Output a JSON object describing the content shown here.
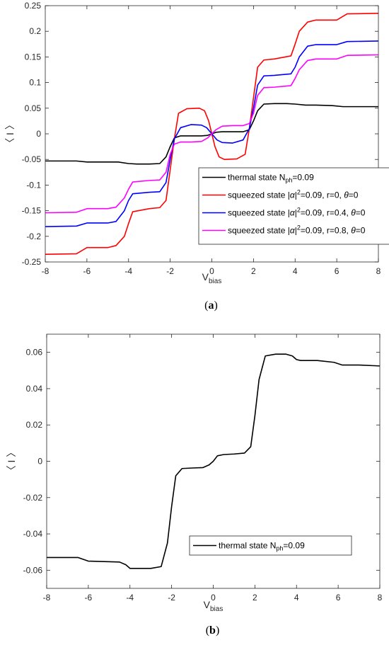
{
  "chart_data": [
    {
      "type": "line",
      "panel_label": "(a)",
      "caption": {
        "open": "(",
        "letter": "a",
        "close": ")"
      },
      "xlabel": {
        "main": "V",
        "sub": "bias"
      },
      "ylabel": "〈 I 〉",
      "xlim": [
        -8,
        8
      ],
      "ylim": [
        -0.25,
        0.25
      ],
      "xticks": [
        -8,
        -6,
        -4,
        -2,
        0,
        2,
        4,
        6,
        8
      ],
      "yticks": [
        -0.25,
        -0.2,
        -0.15,
        -0.1,
        -0.05,
        0,
        0.05,
        0.1,
        0.15,
        0.2,
        0.25
      ],
      "ytick_labels": [
        "-0.25",
        "-0.2",
        "-0.15",
        "-0.1",
        "-0.05",
        "0",
        "0.05",
        "0.1",
        "0.15",
        "0.2",
        "0.25"
      ],
      "grid": false,
      "legend_position": "lower-right",
      "series": [
        {
          "name": "thermal state N_ph=0.09",
          "legend": [
            {
              "t": "thermal state N"
            },
            {
              "t": "ph",
              "sub": true
            },
            {
              "t": "=0.09"
            }
          ],
          "color": "#000000",
          "x": [
            -8,
            -6.5,
            -6,
            -4.5,
            -4,
            -3.6,
            -3.0,
            -2.5,
            -2.2,
            -2.0,
            -1.8,
            -1.5,
            -1.0,
            -0.5,
            -0.2,
            0,
            0.2,
            0.5,
            1.0,
            1.5,
            1.8,
            2.0,
            2.2,
            2.5,
            3.0,
            3.6,
            4,
            4.5,
            5,
            5.8,
            6.3,
            7,
            8
          ],
          "y": [
            -0.053,
            -0.053,
            -0.055,
            -0.055,
            -0.058,
            -0.059,
            -0.059,
            -0.058,
            -0.045,
            -0.025,
            -0.008,
            -0.004,
            -0.004,
            -0.004,
            -0.003,
            0.0,
            0.003,
            0.004,
            0.004,
            0.004,
            0.008,
            0.025,
            0.045,
            0.058,
            0.059,
            0.059,
            0.058,
            0.056,
            0.056,
            0.055,
            0.053,
            0.053,
            0.053
          ]
        },
        {
          "name": "squeezed state |α|²=0.09, r=0, θ=0",
          "legend": [
            {
              "t": "squeezed state |"
            },
            {
              "t": "α",
              "i": true
            },
            {
              "t": "|"
            },
            {
              "t": "2",
              "sup": true
            },
            {
              "t": "=0.09, r=0, "
            },
            {
              "t": "θ",
              "i": true
            },
            {
              "t": "=0"
            }
          ],
          "color": "#ff0000",
          "x": [
            -8,
            -6.5,
            -6,
            -5,
            -4.6,
            -4.2,
            -4,
            -3.8,
            -3.0,
            -2.5,
            -2.2,
            -2.0,
            -1.8,
            -1.6,
            -1.2,
            -0.6,
            -0.35,
            -0.15,
            0,
            0.15,
            0.35,
            0.6,
            1.2,
            1.6,
            1.8,
            2.0,
            2.2,
            2.5,
            3.0,
            3.8,
            4,
            4.2,
            4.6,
            5,
            6,
            6.5,
            8
          ],
          "y": [
            -0.235,
            -0.234,
            -0.222,
            -0.222,
            -0.218,
            -0.2,
            -0.175,
            -0.152,
            -0.146,
            -0.144,
            -0.13,
            -0.07,
            -0.01,
            0.04,
            0.049,
            0.05,
            0.045,
            0.025,
            0.0,
            -0.025,
            -0.045,
            -0.05,
            -0.049,
            -0.04,
            0.01,
            0.07,
            0.13,
            0.144,
            0.146,
            0.152,
            0.175,
            0.2,
            0.218,
            0.222,
            0.222,
            0.234,
            0.235
          ]
        },
        {
          "name": "squeezed state |α|²=0.09, r=0.4, θ=0",
          "legend": [
            {
              "t": "squeezed state |"
            },
            {
              "t": "α",
              "i": true
            },
            {
              "t": "|"
            },
            {
              "t": "2",
              "sup": true
            },
            {
              "t": "=0.09, r=0.4, "
            },
            {
              "t": "θ",
              "i": true
            },
            {
              "t": "=0"
            }
          ],
          "color": "#0000ff",
          "x": [
            -8,
            -6.5,
            -6,
            -5,
            -4.6,
            -4.2,
            -4,
            -3.8,
            -3.0,
            -2.5,
            -2.2,
            -2.0,
            -1.8,
            -1.5,
            -1.0,
            -0.5,
            -0.25,
            0,
            0.25,
            0.5,
            1.0,
            1.5,
            1.8,
            2.0,
            2.2,
            2.5,
            3.0,
            3.8,
            4,
            4.2,
            4.6,
            5,
            6,
            6.5,
            8
          ],
          "y": [
            -0.181,
            -0.18,
            -0.174,
            -0.174,
            -0.171,
            -0.15,
            -0.13,
            -0.117,
            -0.114,
            -0.113,
            -0.095,
            -0.05,
            -0.01,
            0.012,
            0.018,
            0.017,
            0.012,
            0.0,
            -0.012,
            -0.017,
            -0.018,
            -0.012,
            0.01,
            0.05,
            0.095,
            0.113,
            0.114,
            0.117,
            0.13,
            0.15,
            0.171,
            0.174,
            0.174,
            0.18,
            0.181
          ]
        },
        {
          "name": "squeezed state |α|²=0.09, r=0.8, θ=0",
          "legend": [
            {
              "t": "squeezed state |"
            },
            {
              "t": "α",
              "i": true
            },
            {
              "t": "|"
            },
            {
              "t": "2",
              "sup": true
            },
            {
              "t": "=0.09, r=0.8, "
            },
            {
              "t": "θ",
              "i": true
            },
            {
              "t": "=0"
            }
          ],
          "color": "#ff00ff",
          "x": [
            -8,
            -6.5,
            -6,
            -5,
            -4.6,
            -4.2,
            -4,
            -3.8,
            -3.0,
            -2.5,
            -2.2,
            -2.0,
            -1.8,
            -1.5,
            -1.0,
            -0.5,
            -0.2,
            0,
            0.2,
            0.5,
            1.0,
            1.5,
            1.8,
            2.0,
            2.2,
            2.5,
            3.0,
            3.8,
            4,
            4.2,
            4.6,
            5,
            6,
            6.5,
            8
          ],
          "y": [
            -0.154,
            -0.153,
            -0.146,
            -0.146,
            -0.143,
            -0.125,
            -0.108,
            -0.094,
            -0.091,
            -0.09,
            -0.075,
            -0.04,
            -0.02,
            -0.016,
            -0.016,
            -0.015,
            -0.008,
            0.0,
            0.008,
            0.015,
            0.016,
            0.016,
            0.02,
            0.04,
            0.075,
            0.09,
            0.091,
            0.094,
            0.108,
            0.125,
            0.143,
            0.146,
            0.146,
            0.153,
            0.154
          ]
        }
      ]
    },
    {
      "type": "line",
      "panel_label": "(b)",
      "caption": {
        "open": "(",
        "letter": "b",
        "close": ")"
      },
      "xlabel": {
        "main": "V",
        "sub": "bias"
      },
      "ylabel": "〈 I 〉",
      "xlim": [
        -8,
        8
      ],
      "ylim": [
        -0.07,
        0.07
      ],
      "xticks": [
        -8,
        -6,
        -4,
        -2,
        0,
        2,
        4,
        6,
        8
      ],
      "yticks": [
        -0.06,
        -0.04,
        -0.02,
        0,
        0.02,
        0.04,
        0.06
      ],
      "ytick_labels": [
        "-0.06",
        "-0.04",
        "-0.02",
        "0",
        "0.02",
        "0.04",
        "0.06"
      ],
      "grid": false,
      "legend_position": "lower-right",
      "series": [
        {
          "name": "thermal state N_ph=0.09",
          "legend": [
            {
              "t": "thermal state N"
            },
            {
              "t": "ph",
              "sub": true
            },
            {
              "t": "=0.09"
            }
          ],
          "color": "#000000",
          "x": [
            -8,
            -6.5,
            -6,
            -4.5,
            -4.2,
            -4,
            -3.5,
            -3.0,
            -2.5,
            -2.2,
            -2.0,
            -1.8,
            -1.5,
            -1.0,
            -0.5,
            -0.2,
            0,
            0.2,
            0.5,
            1.0,
            1.5,
            1.8,
            2.0,
            2.2,
            2.5,
            3.0,
            3.5,
            3.8,
            4,
            4.2,
            5,
            5.8,
            6.2,
            7,
            8
          ],
          "y": [
            -0.053,
            -0.053,
            -0.055,
            -0.0555,
            -0.057,
            -0.059,
            -0.059,
            -0.059,
            -0.058,
            -0.045,
            -0.025,
            -0.008,
            -0.004,
            -0.0037,
            -0.0035,
            -0.002,
            0.0,
            0.003,
            0.0037,
            0.004,
            0.0045,
            0.008,
            0.025,
            0.045,
            0.058,
            0.059,
            0.059,
            0.058,
            0.056,
            0.0555,
            0.0555,
            0.0545,
            0.053,
            0.053,
            0.0525
          ]
        }
      ]
    }
  ]
}
